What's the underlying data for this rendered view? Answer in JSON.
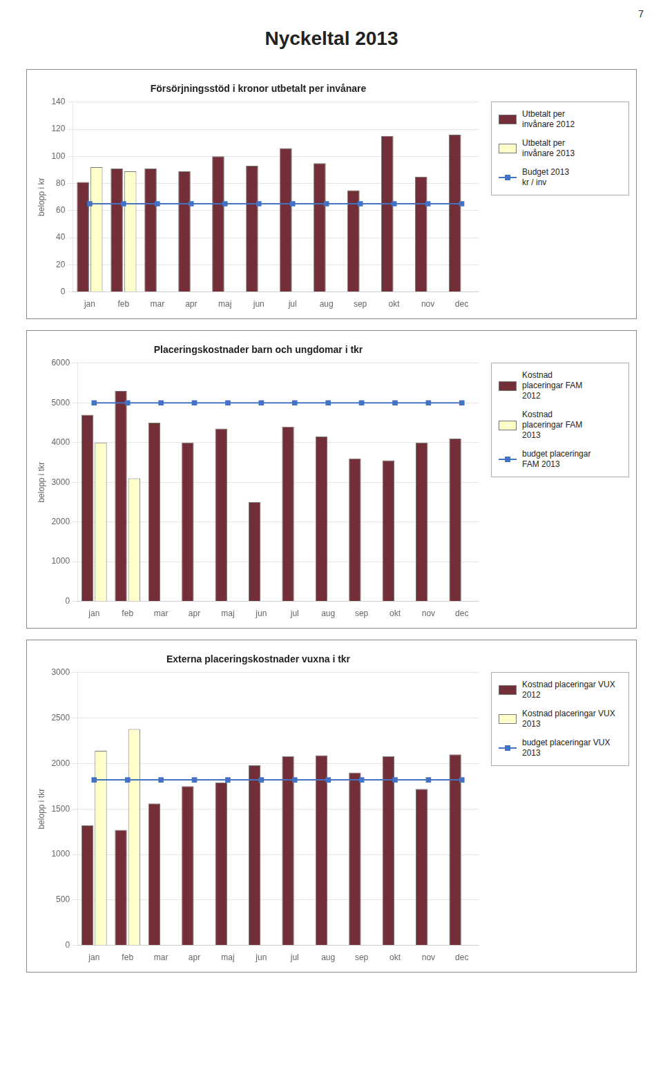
{
  "title": "Nyckeltal 2013",
  "page_number": "7",
  "chart_data": [
    {
      "type": "bar",
      "title": "Försörjningsstöd i kronor utbetalt per invånare",
      "ylabel": "belopp i kr",
      "categories": [
        "jan",
        "feb",
        "mar",
        "apr",
        "maj",
        "jun",
        "jul",
        "aug",
        "sep",
        "okt",
        "nov",
        "dec"
      ],
      "series": [
        {
          "name": "Utbetalt per\ninvånare 2012",
          "type": "bar",
          "color": "#722F37",
          "values": [
            81,
            91,
            91,
            89,
            100,
            93,
            106,
            95,
            75,
            115,
            85,
            116
          ]
        },
        {
          "name": "Utbetalt per\ninvånare 2013",
          "type": "bar",
          "color": "#FFFFCC",
          "values": [
            92,
            89,
            null,
            null,
            null,
            null,
            null,
            null,
            null,
            null,
            null,
            null
          ]
        },
        {
          "name": "Budget 2013\nkr / inv",
          "type": "line",
          "marker": "square",
          "color": "#4472C4",
          "values": [
            65,
            65,
            65,
            65,
            65,
            65,
            65,
            65,
            65,
            65,
            65,
            65
          ]
        }
      ],
      "ylim": [
        0,
        140
      ],
      "yticks": [
        0,
        20,
        40,
        60,
        80,
        100,
        120,
        140
      ],
      "grid": true
    },
    {
      "type": "bar",
      "title": "Placeringskostnader barn och ungdomar i tkr",
      "ylabel": "belopp i tkr",
      "categories": [
        "jan",
        "feb",
        "mar",
        "apr",
        "maj",
        "jun",
        "jul",
        "aug",
        "sep",
        "okt",
        "nov",
        "dec"
      ],
      "series": [
        {
          "name": "Kostnad\nplaceringar FAM\n2012",
          "type": "bar",
          "color": "#722F37",
          "values": [
            4700,
            5300,
            4500,
            4000,
            4350,
            2500,
            4400,
            4150,
            3600,
            3550,
            4000,
            4100
          ]
        },
        {
          "name": "Kostnad\nplaceringar FAM\n2013",
          "type": "bar",
          "color": "#FFFFCC",
          "values": [
            4000,
            3100,
            null,
            null,
            null,
            null,
            null,
            null,
            null,
            null,
            null,
            null
          ]
        },
        {
          "name": "budget placeringar\nFAM 2013",
          "type": "line",
          "marker": "square",
          "color": "#4472C4",
          "values": [
            5000,
            5000,
            5000,
            5000,
            5000,
            5000,
            5000,
            5000,
            5000,
            5000,
            5000,
            5000
          ]
        }
      ],
      "ylim": [
        0,
        6000
      ],
      "yticks": [
        0,
        1000,
        2000,
        3000,
        4000,
        5000,
        6000
      ],
      "grid": true
    },
    {
      "type": "bar",
      "title": "Externa placeringskostnader vuxna i tkr",
      "ylabel": "belopp i tkr",
      "categories": [
        "jan",
        "feb",
        "mar",
        "apr",
        "maj",
        "jun",
        "jul",
        "aug",
        "sep",
        "okt",
        "nov",
        "dec"
      ],
      "series": [
        {
          "name": "Kostnad placeringar VUX\n2012",
          "type": "bar",
          "color": "#722F37",
          "values": [
            1320,
            1270,
            1560,
            1750,
            1790,
            1980,
            2080,
            2090,
            1900,
            2080,
            1720,
            2100
          ]
        },
        {
          "name": "Kostnad placeringar VUX\n2013",
          "type": "bar",
          "color": "#FFFFCC",
          "values": [
            2140,
            2380,
            null,
            null,
            null,
            null,
            null,
            null,
            null,
            null,
            null,
            null
          ]
        },
        {
          "name": "budget placeringar VUX\n2013",
          "type": "line",
          "marker": "square",
          "color": "#4472C4",
          "values": [
            1820,
            1820,
            1820,
            1820,
            1820,
            1820,
            1820,
            1820,
            1820,
            1820,
            1820,
            1820
          ]
        }
      ],
      "ylim": [
        0,
        3000
      ],
      "yticks": [
        0,
        500,
        1000,
        1500,
        2000,
        2500,
        3000
      ],
      "grid": true
    }
  ]
}
